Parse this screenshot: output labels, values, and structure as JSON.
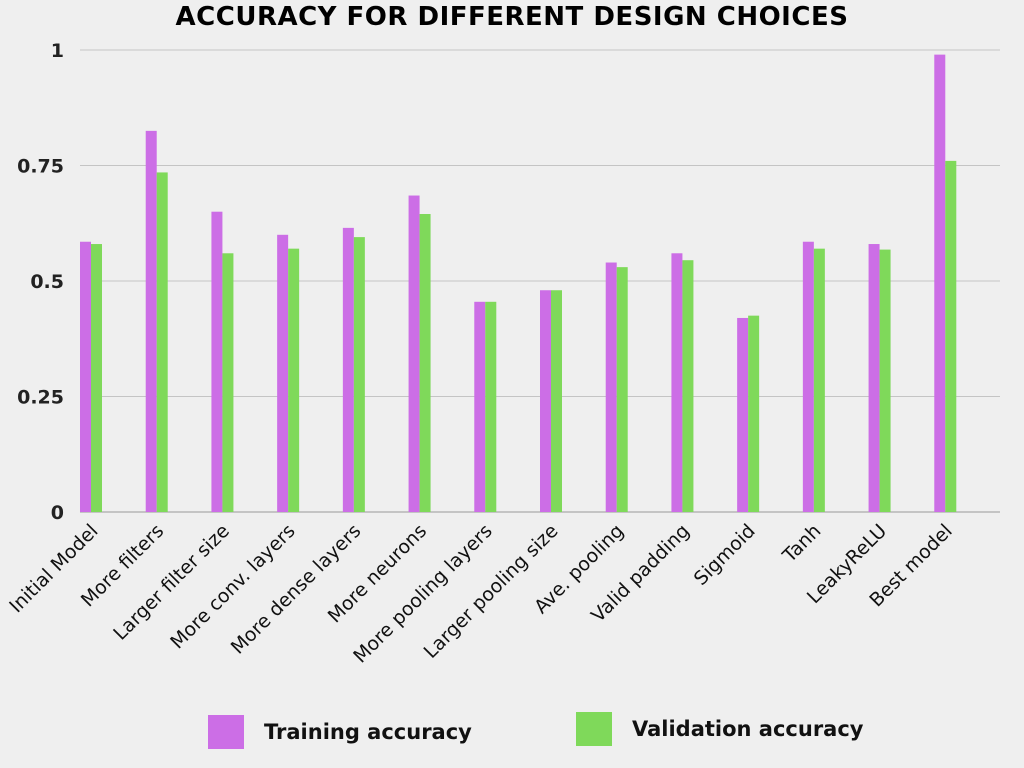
{
  "chart_data": {
    "type": "bar",
    "title": "ACCURACY FOR DIFFERENT DESIGN CHOICES",
    "xlabel": "",
    "ylabel": "",
    "ylim": [
      0,
      1
    ],
    "yticks": [
      0,
      0.25,
      0.5,
      0.75,
      1
    ],
    "ytick_labels": [
      "0",
      "0.25",
      "0.5",
      "0.75",
      "1"
    ],
    "grid": true,
    "legend_position": "bottom",
    "categories": [
      "Initial Model",
      "More filters",
      "Larger filter size",
      "More conv. layers",
      "More dense layers",
      "More neurons",
      "More pooling layers",
      "Larger pooling size",
      "Ave. pooling",
      "Valid padding",
      "Sigmoid",
      "Tanh",
      "LeakyReLU",
      "Best model"
    ],
    "series": [
      {
        "name": "Training accuracy",
        "color": "#cc6ee6",
        "values": [
          0.585,
          0.825,
          0.65,
          0.6,
          0.615,
          0.685,
          0.455,
          0.48,
          0.54,
          0.56,
          0.42,
          0.585,
          0.58,
          0.99
        ]
      },
      {
        "name": "Validation accuracy",
        "color": "#7fd95a",
        "values": [
          0.58,
          0.735,
          0.56,
          0.57,
          0.595,
          0.645,
          0.455,
          0.48,
          0.53,
          0.545,
          0.425,
          0.57,
          0.568,
          0.76
        ]
      }
    ]
  }
}
